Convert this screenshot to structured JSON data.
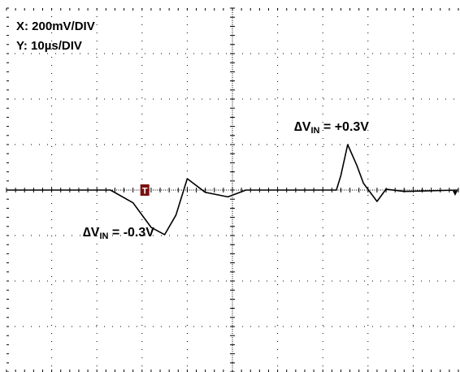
{
  "scale": {
    "x_label": "X: 200mV/DIV",
    "y_label": "Y: 10µs/DIV"
  },
  "annotations": {
    "positive": {
      "prefix": "∆V",
      "sub": "IN",
      "suffix": " = +0.3V"
    },
    "negative": {
      "prefix": "∆V",
      "sub": "IN",
      "suffix": " = -0.3V"
    }
  },
  "trigger_marker": "T",
  "colors": {
    "background": "#ffffff",
    "grid": "#000000",
    "trace": "#000000",
    "marker": "#7a1010"
  },
  "chart_data": {
    "type": "line",
    "grid": true,
    "divisions": {
      "x": 10,
      "y": 8
    },
    "xlim": [
      0,
      10
    ],
    "ylim": [
      -4,
      4
    ],
    "series": [
      {
        "x": [
          0,
          2.3,
          2.8,
          3.2,
          3.5,
          3.75,
          4.0,
          4.4,
          4.9,
          5.3,
          7.3,
          7.4,
          7.55,
          7.75,
          7.9,
          8.2,
          8.4,
          8.8,
          10
        ],
        "y": [
          0,
          0,
          -0.28,
          -0.82,
          -0.98,
          -0.55,
          0.25,
          -0.05,
          -0.15,
          0,
          0,
          0.32,
          1.0,
          0.55,
          0.15,
          -0.25,
          0.02,
          -0.03,
          0
        ]
      }
    ]
  }
}
